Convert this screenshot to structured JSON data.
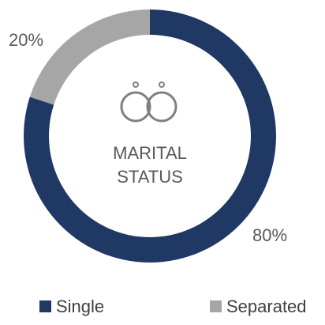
{
  "chart_data": {
    "type": "donut",
    "center_label": [
      "MARITAL",
      "STATUS"
    ],
    "categories": [
      "Single",
      "Separated"
    ],
    "values": [
      80,
      20
    ],
    "value_labels": [
      "80%",
      "20%"
    ],
    "colors": [
      "#203864",
      "#a6a6a6"
    ],
    "legend": "bottom"
  }
}
